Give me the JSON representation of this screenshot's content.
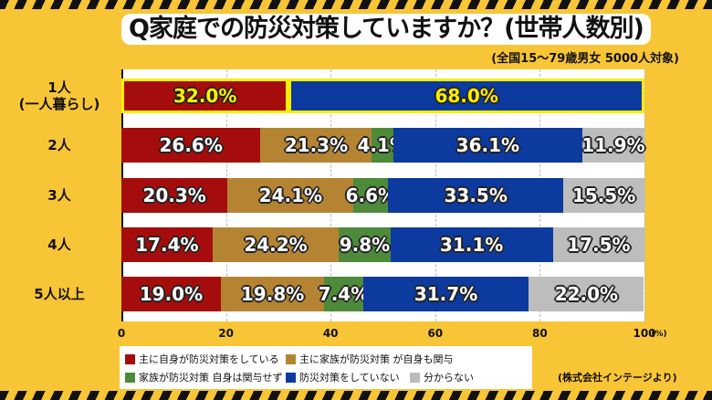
{
  "title": "Q家庭での防災対策していますか？(世帯人数別)",
  "subtitle": "(全国15〜79歳男女 5000人対象)",
  "source": "(株式会社インテージより)",
  "chart_data": {
    "type": "bar",
    "orientation": "horizontal-stacked-100",
    "title": "Q家庭での防災対策していますか？(世帯人数別)",
    "categories": [
      "1人\n(一人暮らし)",
      "2人",
      "3人",
      "4人",
      "5人以上"
    ],
    "category_lines": [
      [
        "1人",
        "(一人暮らし)"
      ],
      [
        "2人"
      ],
      [
        "3人"
      ],
      [
        "4人"
      ],
      [
        "5人以上"
      ]
    ],
    "xlim": [
      0,
      100
    ],
    "x_ticks": [
      "0",
      "20",
      "40",
      "60",
      "80",
      "100"
    ],
    "x_unit": "(%)",
    "grid": true,
    "legend_position": "bottom",
    "series": [
      {
        "name": "主に自身が防災対策をしている",
        "color": "#a50d0d",
        "values": [
          32.0,
          26.6,
          20.3,
          17.4,
          19.0
        ],
        "labels": [
          "32.0%",
          "26.6%",
          "20.3%",
          "17.4%",
          "19.0%"
        ]
      },
      {
        "name": "主に家族が防災対策 が自身も関与",
        "color": "#b58432",
        "values": [
          0,
          21.3,
          24.1,
          24.2,
          19.8
        ],
        "labels": [
          "",
          "21.3%",
          "24.1%",
          "24.2%",
          "19.8%"
        ]
      },
      {
        "name": "家族が防災対策 自身は関与せず",
        "color": "#4d8a3a",
        "values": [
          0,
          4.1,
          6.6,
          9.8,
          7.4
        ],
        "labels": [
          "",
          "4.1%",
          "6.6%",
          "9.8%",
          "7.4%"
        ]
      },
      {
        "name": "防災対策をしていない",
        "color": "#0c3a9e",
        "values": [
          68.0,
          36.1,
          33.5,
          31.1,
          31.7
        ],
        "labels": [
          "68.0%",
          "36.1%",
          "33.5%",
          "31.1%",
          "31.7%"
        ]
      },
      {
        "name": "分からない",
        "color": "#bdbdbd",
        "values": [
          0,
          11.9,
          15.5,
          17.5,
          22.0
        ],
        "labels": [
          "",
          "11.9%",
          "15.5%",
          "17.5%",
          "22.0%"
        ]
      }
    ],
    "highlight_category": "1人\n(一人暮らし)",
    "highlight_color": "#ffee00"
  }
}
